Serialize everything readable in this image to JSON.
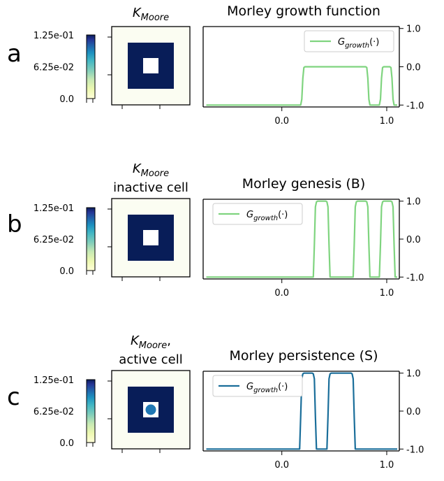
{
  "colors": {
    "kernel_fill": "#081d58",
    "kernel_bg": "#fbfdf2",
    "kernel_hole": "#ffffff",
    "active_dot": "#1f77b4",
    "growth_green": "#7fd47f",
    "growth_blue": "#1a6e9a"
  },
  "colorbar_labels": {
    "top": "1.25e-01",
    "mid": "6.25e-02",
    "bottom": "0.0"
  },
  "chart_data": [
    {
      "panel": "a",
      "type": "line",
      "kernel_title": [
        "K_Moore"
      ],
      "kernel_active_cell": false,
      "title": "Morley growth function",
      "legend": "G_growth(·)",
      "legend_position": "upper-right",
      "line_color": "#7fd47f",
      "x_ticks": [
        "0.0",
        "1.0"
      ],
      "y_ticks": [
        "1.0",
        "0.0",
        "-1.0"
      ],
      "xlim": [
        -0.75,
        1.12
      ],
      "ylim": [
        -1.05,
        1.05
      ],
      "x": [
        -0.72,
        0.18,
        0.19,
        0.2,
        0.21,
        0.22,
        0.8,
        0.81,
        0.82,
        0.83,
        0.84,
        0.93,
        0.94,
        0.95,
        0.96,
        0.97,
        1.03,
        1.04,
        1.05,
        1.06,
        1.07,
        1.1
      ],
      "y": [
        -1.0,
        -1.0,
        -0.85,
        -0.3,
        -0.02,
        0.0,
        0.0,
        -0.02,
        -0.3,
        -0.85,
        -1.0,
        -1.0,
        -0.85,
        -0.3,
        -0.02,
        0.0,
        0.0,
        -0.02,
        -0.3,
        -0.85,
        -1.0,
        -1.0
      ],
      "series_label": "G_growth(·)"
    },
    {
      "panel": "b",
      "type": "line",
      "kernel_title": [
        "K_Moore",
        "inactive cell"
      ],
      "kernel_active_cell": false,
      "title": "Morley genesis (B)",
      "legend": "G_growth(·)",
      "legend_position": "upper-left",
      "line_color": "#7fd47f",
      "x_ticks": [
        "0.0",
        "1.0"
      ],
      "y_ticks": [
        "1.0",
        "0.0",
        "-1.0"
      ],
      "xlim": [
        -0.75,
        1.12
      ],
      "ylim": [
        -1.05,
        1.05
      ],
      "x": [
        -0.72,
        0.3,
        0.31,
        0.32,
        0.33,
        0.34,
        0.42,
        0.43,
        0.44,
        0.45,
        0.46,
        0.68,
        0.69,
        0.7,
        0.71,
        0.72,
        0.8,
        0.81,
        0.82,
        0.83,
        0.84,
        0.93,
        0.94,
        0.95,
        0.96,
        0.97,
        1.04,
        1.05,
        1.06,
        1.07,
        1.08,
        1.1
      ],
      "y": [
        -1.0,
        -1.0,
        -0.15,
        0.85,
        0.98,
        1.0,
        1.0,
        0.98,
        0.85,
        -0.15,
        -1.0,
        -1.0,
        -0.15,
        0.85,
        0.98,
        1.0,
        1.0,
        0.98,
        0.85,
        -0.15,
        -1.0,
        -1.0,
        -0.15,
        0.85,
        0.98,
        1.0,
        1.0,
        0.98,
        0.85,
        -0.15,
        -1.0,
        -1.0
      ]
    },
    {
      "panel": "c",
      "type": "line",
      "kernel_title": [
        "K_Moore,",
        "active cell"
      ],
      "kernel_active_cell": true,
      "title": "Morley persistence (S)",
      "legend": "G_growth(·)",
      "legend_position": "upper-left",
      "line_color": "#1a6e9a",
      "x_ticks": [
        "0.0",
        "1.0"
      ],
      "y_ticks": [
        "1.0",
        "0.0",
        "-1.0"
      ],
      "xlim": [
        -0.75,
        1.12
      ],
      "ylim": [
        -1.05,
        1.05
      ],
      "x": [
        -0.72,
        0.17,
        0.18,
        0.19,
        0.2,
        0.21,
        0.29,
        0.3,
        0.31,
        0.32,
        0.33,
        0.43,
        0.44,
        0.45,
        0.46,
        0.47,
        0.66,
        0.67,
        0.68,
        0.69,
        0.7,
        1.1
      ],
      "y": [
        -1.0,
        -1.0,
        -0.15,
        0.85,
        0.98,
        1.0,
        1.0,
        0.98,
        0.85,
        -0.15,
        -1.0,
        -1.0,
        -0.15,
        0.85,
        0.98,
        1.0,
        1.0,
        0.98,
        0.85,
        -0.15,
        -1.0,
        -1.0
      ]
    }
  ]
}
